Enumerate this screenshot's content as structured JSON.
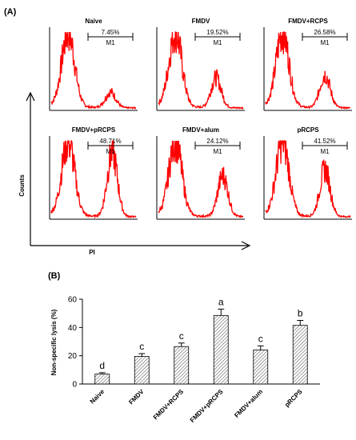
{
  "panel_a": {
    "label": "(A)",
    "y_axis_label": "Counts",
    "x_axis_label": "PI",
    "gate_label": "M1",
    "histograms": [
      {
        "title": "Naive",
        "gate_percent": "7.45%",
        "peak2_height": 0.2,
        "peak2_pos": 0.7
      },
      {
        "title": "FMDV",
        "gate_percent": "19.52%",
        "peak2_height": 0.38,
        "peak2_pos": 0.68
      },
      {
        "title": "FMDV+RCPS",
        "gate_percent": "26.58%",
        "peak2_height": 0.42,
        "peak2_pos": 0.7
      },
      {
        "title": "FMDV+pRCPS",
        "gate_percent": "48.71%",
        "peak2_height": 0.82,
        "peak2_pos": 0.72
      },
      {
        "title": "FMDV+alum",
        "gate_percent": "24.12%",
        "peak2_height": 0.52,
        "peak2_pos": 0.76
      },
      {
        "title": "pRCPS",
        "gate_percent": "41.52%",
        "peak2_height": 0.6,
        "peak2_pos": 0.7
      }
    ],
    "line_color": "#ff0000"
  },
  "chart_data": {
    "label": "(B)",
    "type": "bar",
    "categories": [
      "Naive",
      "FMDV",
      "FMDV+RCPS",
      "FMDV+pRCPS",
      "FMDV+alum",
      "pRCPS"
    ],
    "values": [
      7,
      19.5,
      26.5,
      48.5,
      24,
      41.5
    ],
    "errors": [
      1,
      2,
      2.5,
      4.5,
      3,
      3.5
    ],
    "significance": [
      "d",
      "c",
      "c",
      "a",
      "c",
      "b"
    ],
    "ylabel": "Non-specific lysis (%)",
    "xlabel": "",
    "ylim": [
      0,
      60
    ],
    "yticks": [
      0,
      20,
      40,
      60
    ],
    "bar_style": "diagonal-hatch",
    "grid": false
  }
}
